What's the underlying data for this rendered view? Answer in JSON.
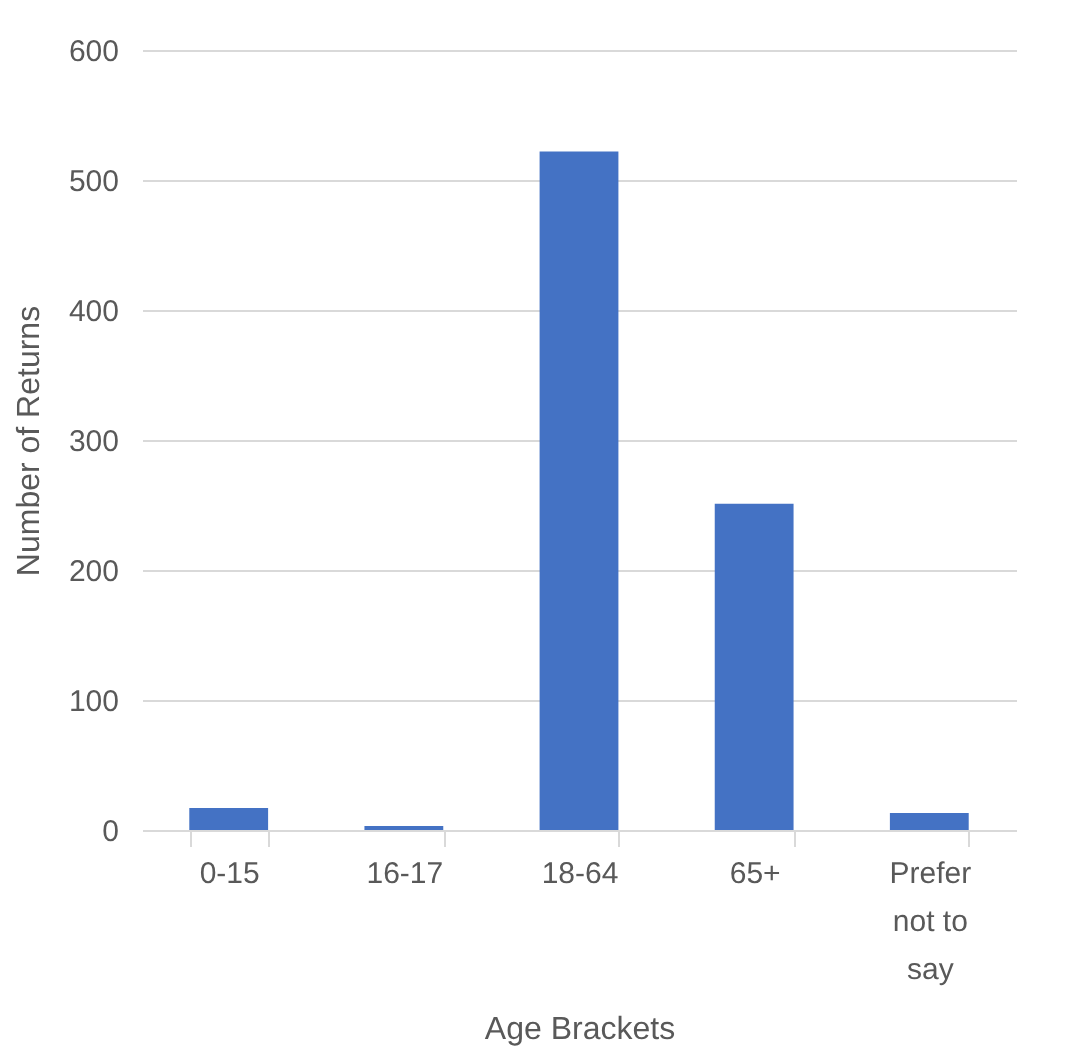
{
  "chart_data": {
    "type": "bar",
    "xlabel": "Age Brackets",
    "ylabel": "Number of Returns",
    "categories": [
      "0-15",
      "16-17",
      "18-64",
      "65+",
      "Prefer not to say"
    ],
    "values": [
      17,
      3,
      522,
      251,
      13
    ],
    "color": "#4472c4",
    "ylim": [
      0,
      600
    ],
    "yticks": [
      0,
      100,
      200,
      300,
      400,
      500,
      600
    ],
    "grid": "y"
  }
}
